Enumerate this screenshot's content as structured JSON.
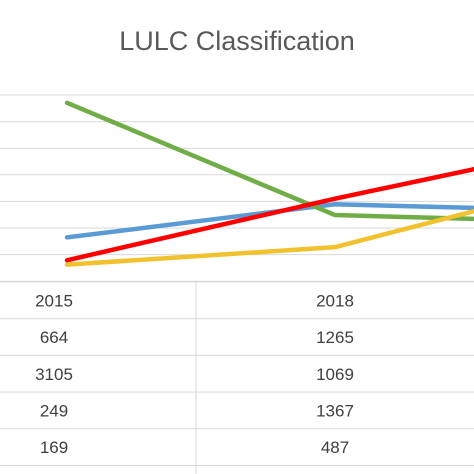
{
  "chart_data": {
    "type": "line",
    "title": "LULC Classification",
    "categories": [
      "2015",
      "2018"
    ],
    "series": [
      {
        "values": [
          664,
          1265
        ],
        "color": "#5b9bd5"
      },
      {
        "values": [
          3105,
          1069
        ],
        "color": "#70ad47"
      },
      {
        "values": [
          249,
          1367
        ],
        "color": "#ff0000"
      },
      {
        "values": [
          169,
          487
        ],
        "color": "#f2c12e"
      }
    ],
    "partial_next_column": {
      "series_end_values": [
        1200,
        1000,
        1900,
        1140
      ]
    },
    "grid": true,
    "data_table": true
  }
}
